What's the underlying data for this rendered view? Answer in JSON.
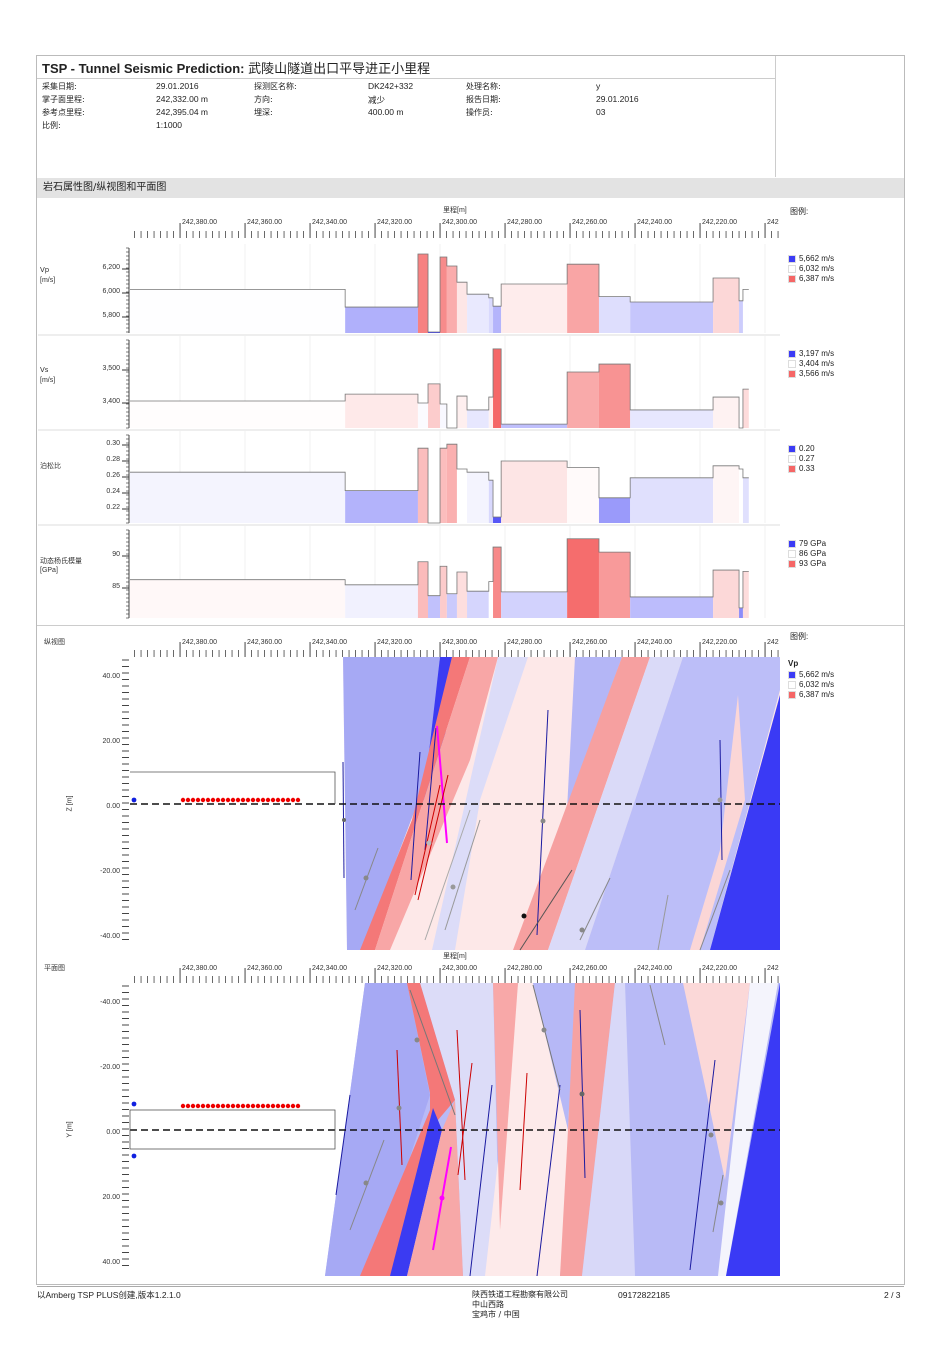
{
  "header": {
    "title_en": "TSP - Tunnel Seismic Prediction:",
    "title_cn": "武陵山隧道出口平导进正小里程",
    "fields": [
      {
        "label": "采集日期:",
        "value": "29.01.2016"
      },
      {
        "label": "探测区名称:",
        "value": "DK242+332"
      },
      {
        "label": "处理名称:",
        "value": "y"
      },
      {
        "label": "掌子面里程:",
        "value": "242,332.00 m"
      },
      {
        "label": "方向:",
        "value": "减少"
      },
      {
        "label": "报告日期:",
        "value": "29.01.2016"
      },
      {
        "label": "参考点里程:",
        "value": "242,395.04 m"
      },
      {
        "label": "埋深:",
        "value": "400.00 m"
      },
      {
        "label": "操作员:",
        "value": "03"
      },
      {
        "label": "比例:",
        "value": "1:1000"
      }
    ]
  },
  "section_title": "岩石属性图/纵视图和平面图",
  "axis": {
    "label": "里程[m]",
    "ticks": [
      "242,380.00",
      "242,360.00",
      "242,340.00",
      "242,320.00",
      "242,300.00",
      "242,280.00",
      "242,260.00",
      "242,240.00",
      "242,220.00",
      "242"
    ]
  },
  "legend_title": "图例:",
  "colors": {
    "low": "#3b3bf5",
    "mid": "#ffffff",
    "high": "#f56666"
  },
  "chart_data": [
    {
      "type": "bar",
      "name": "vp",
      "label": "Vp",
      "unit": "[m/s]",
      "ticks": [
        "6,200",
        "6,000",
        "5,800"
      ],
      "legend": [
        "5,662 m/s",
        "6,032 m/s",
        "6,387 m/s"
      ],
      "scale": [
        5662,
        6032,
        6387
      ],
      "segments": [
        [
          242395.4,
          242329.2,
          6030
        ],
        [
          242329.2,
          242306.8,
          5883
        ],
        [
          242306.8,
          242303.7,
          6325
        ],
        [
          242303.7,
          242300.0,
          5675
        ],
        [
          242300.0,
          242297.9,
          6300
        ],
        [
          242297.9,
          242294.8,
          6225
        ],
        [
          242294.8,
          242291.7,
          6090
        ],
        [
          242291.7,
          242285.0,
          5990
        ],
        [
          242285.0,
          242283.7,
          5960
        ],
        [
          242283.7,
          242281.2,
          5890
        ],
        [
          242281.2,
          242260.9,
          6075
        ],
        [
          242260.9,
          242251.1,
          6240
        ],
        [
          242251.1,
          242241.5,
          5970
        ],
        [
          242241.5,
          242216.0,
          5925
        ],
        [
          242216.0,
          242208.0,
          6125
        ],
        [
          242208.0,
          242206.8,
          5935
        ],
        [
          242206.8,
          242205.0,
          6030
        ]
      ]
    },
    {
      "type": "bar",
      "name": "vs",
      "label": "Vs",
      "unit": "[m/s]",
      "ticks": [
        "3,500",
        "3,400"
      ],
      "legend": [
        "3,197 m/s",
        "3,404 m/s",
        "3,566 m/s"
      ],
      "scale": [
        3197,
        3404,
        3566
      ],
      "segments": [
        [
          242395.4,
          242329.2,
          3406
        ],
        [
          242329.2,
          242306.8,
          3427
        ],
        [
          242306.8,
          242303.7,
          3400
        ],
        [
          242303.7,
          242300.0,
          3458
        ],
        [
          242300.0,
          242297.9,
          3397
        ],
        [
          242297.9,
          242294.8,
          3324
        ],
        [
          242294.8,
          242291.7,
          3421
        ],
        [
          242291.7,
          242285.0,
          3379
        ],
        [
          242285.0,
          242283.7,
          3418
        ],
        [
          242283.7,
          242281.2,
          3564
        ],
        [
          242281.2,
          242260.9,
          3336
        ],
        [
          242260.9,
          242251.1,
          3494
        ],
        [
          242251.1,
          242241.5,
          3518
        ],
        [
          242241.5,
          242216.0,
          3379
        ],
        [
          242216.0,
          242208.0,
          3418
        ],
        [
          242208.0,
          242206.8,
          3300
        ],
        [
          242206.8,
          242205.0,
          3442
        ]
      ]
    },
    {
      "type": "bar",
      "name": "poisson",
      "label": "泊松比",
      "unit": "",
      "ticks": [
        "0.30",
        "0.28",
        "0.26",
        "0.24",
        "0.22"
      ],
      "legend": [
        "0.20",
        "0.27",
        "0.33"
      ],
      "scale": [
        0.2,
        0.27,
        0.33
      ],
      "segments": [
        [
          242395.4,
          242329.2,
          0.266
        ],
        [
          242329.2,
          242306.8,
          0.243
        ],
        [
          242306.8,
          242303.7,
          0.296
        ],
        [
          242303.7,
          242300.0,
          0.2
        ],
        [
          242300.0,
          242297.9,
          0.296
        ],
        [
          242297.9,
          242294.8,
          0.301
        ],
        [
          242294.8,
          242291.7,
          0.27
        ],
        [
          242291.7,
          242285.0,
          0.266
        ],
        [
          242285.0,
          242283.7,
          0.256
        ],
        [
          242283.7,
          242281.2,
          0.21
        ],
        [
          242281.2,
          242260.9,
          0.28
        ],
        [
          242260.9,
          242251.1,
          0.272
        ],
        [
          242251.1,
          242241.5,
          0.234
        ],
        [
          242241.5,
          242216.0,
          0.259
        ],
        [
          242216.0,
          242208.0,
          0.274
        ],
        [
          242208.0,
          242206.8,
          0.27
        ],
        [
          242206.8,
          242205.0,
          0.259
        ]
      ]
    },
    {
      "type": "bar",
      "name": "young",
      "label": "动态杨氏模量",
      "unit": "[GPa]",
      "ticks": [
        "90",
        "85"
      ],
      "legend": [
        "79 GPa",
        "86 GPa",
        "93 GPa"
      ],
      "scale": [
        79,
        86,
        93
      ],
      "segments": [
        [
          242395.4,
          242329.2,
          86.3
        ],
        [
          242329.2,
          242306.8,
          85.5
        ],
        [
          242306.8,
          242303.7,
          89.1
        ],
        [
          242303.7,
          242300.0,
          83.8
        ],
        [
          242300.0,
          242297.9,
          88.4
        ],
        [
          242297.9,
          242294.8,
          84.1
        ],
        [
          242294.8,
          242291.7,
          87.5
        ],
        [
          242291.7,
          242285.0,
          84.5
        ],
        [
          242285.0,
          242283.7,
          86.0
        ],
        [
          242283.7,
          242281.2,
          91.4
        ],
        [
          242281.2,
          242260.9,
          84.4
        ],
        [
          242260.9,
          242251.1,
          92.7
        ],
        [
          242251.1,
          242241.5,
          90.6
        ],
        [
          242241.5,
          242216.0,
          83.6
        ],
        [
          242216.0,
          242208.0,
          87.8
        ],
        [
          242208.0,
          242206.8,
          81.9
        ],
        [
          242206.8,
          242205.0,
          87.6
        ]
      ]
    }
  ],
  "side_view": {
    "title": "纵视图",
    "axis_label": "Z [m]",
    "ticks": [
      "40.00",
      "20.00",
      "0.00",
      "-20.00",
      "-40.00"
    ],
    "legend_param": "Vp",
    "legend": [
      "5,662 m/s",
      "6,032 m/s",
      "6,387 m/s"
    ],
    "bottom_label": "里程[m]"
  },
  "plan_view": {
    "title": "平面图",
    "axis_label": "Y [m]",
    "ticks": [
      "-40.00",
      "-20.00",
      "0.00",
      "20.00",
      "40.00"
    ]
  },
  "footer": {
    "created": "以Amberg TSP PLUS创建,版本1.2.1.0",
    "company": [
      "陕西铁道工程勘察有限公司",
      "中山西路",
      "宝鸡市 / 中国"
    ],
    "phone": "09172822185",
    "page": "2 / 3"
  }
}
